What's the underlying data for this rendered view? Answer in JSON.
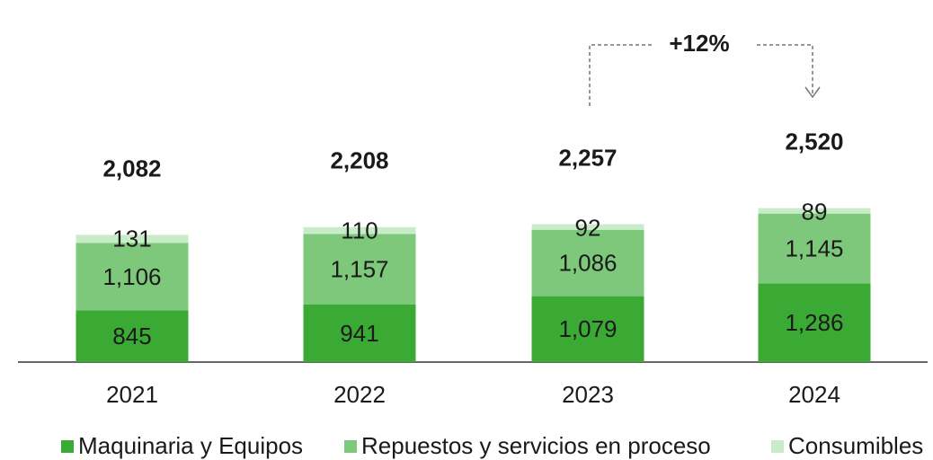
{
  "chart_data": {
    "type": "stacked_bar",
    "categories": [
      "2021",
      "2022",
      "2023",
      "2024"
    ],
    "series": [
      {
        "name": "Maquinaria y Equipos",
        "color": "#3aaa35",
        "values": [
          845,
          941,
          1079,
          1286
        ],
        "value_labels": [
          "845",
          "941",
          "1,079",
          "1,286"
        ]
      },
      {
        "name": "Repuestos y servicios en proceso",
        "color": "#7dc87a",
        "values": [
          1106,
          1157,
          1086,
          1145
        ],
        "value_labels": [
          "1,106",
          "1,157",
          "1,086",
          "1,145"
        ]
      },
      {
        "name": "Consumibles",
        "color": "#c8ecc8",
        "values": [
          131,
          110,
          92,
          89
        ],
        "value_labels": [
          "131",
          "110",
          "92",
          "89"
        ]
      }
    ],
    "totals": [
      2082,
      2208,
      2257,
      2520
    ],
    "total_labels": [
      "2,082",
      "2,208",
      "2,257",
      "2,520"
    ],
    "annotation": "+12%"
  }
}
